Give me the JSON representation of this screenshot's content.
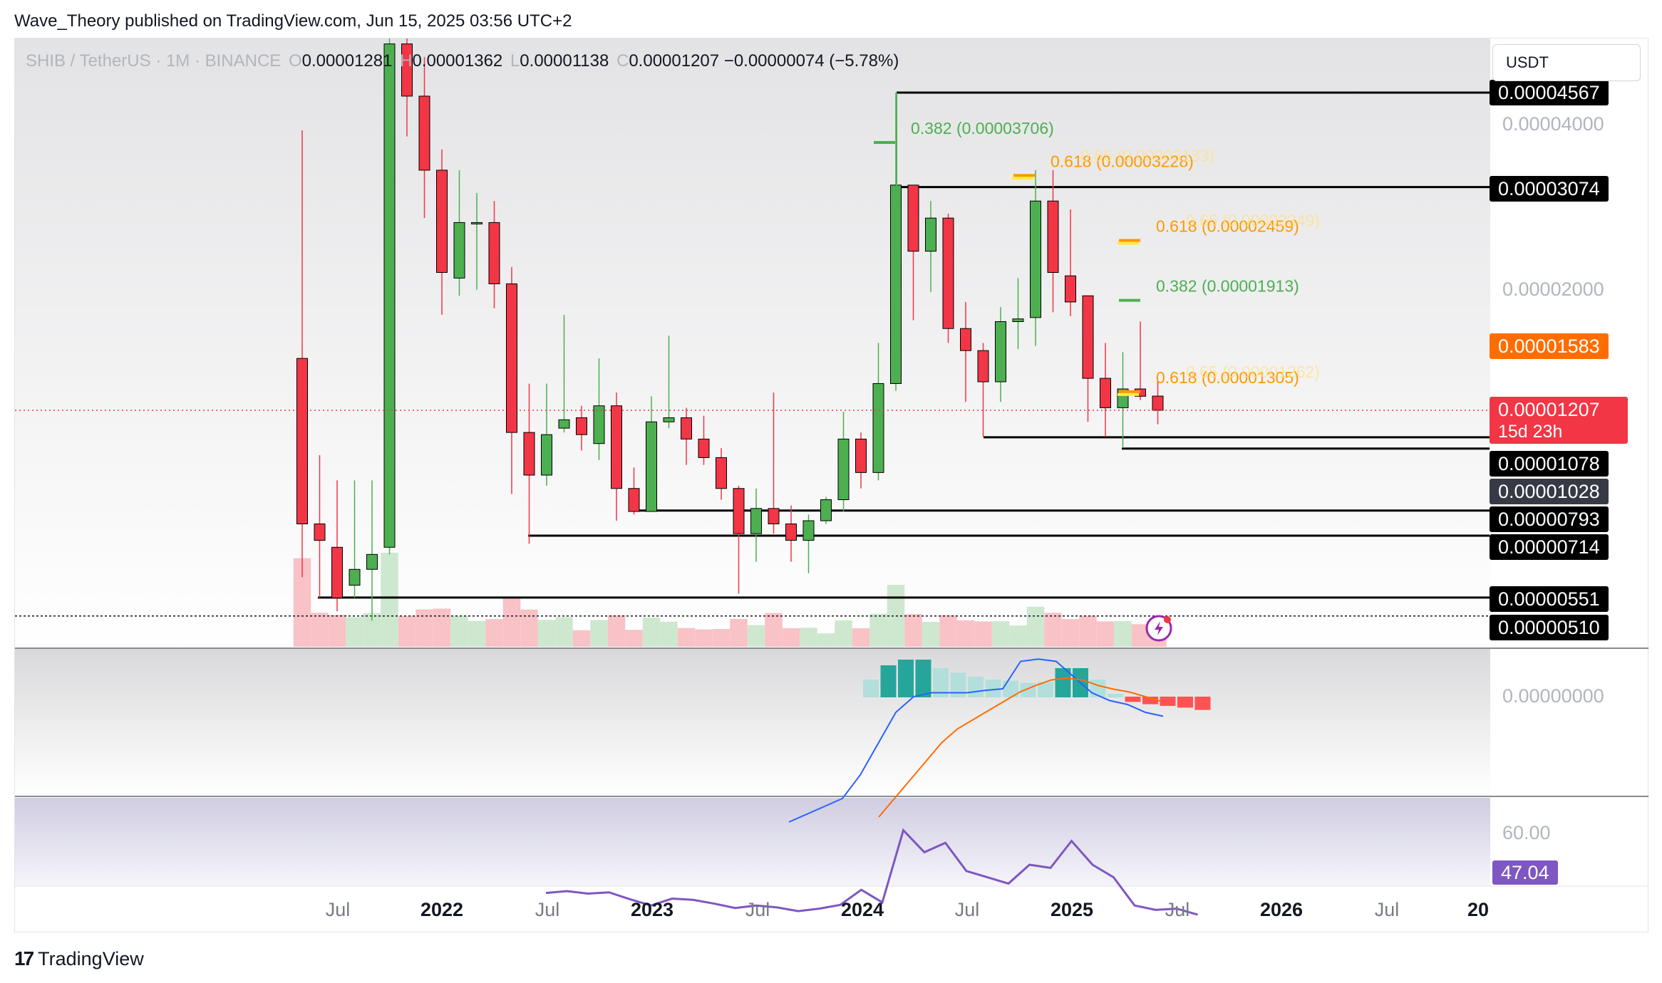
{
  "header": {
    "attribution": "Wave_Theory published on TradingView.com, Jun 15, 2025 03:56 UTC+2"
  },
  "legend": {
    "symbol": "SHIB / TetherUS · 1M · BINANCE",
    "o_label": "O",
    "open": "0.00001281",
    "h_label": "H",
    "high": "0.00001362",
    "l_label": "L",
    "low": "0.00001138",
    "c_label": "C",
    "close": "0.00001207",
    "change": "−0.00000074 (−5.78%)"
  },
  "currency": "USDT",
  "price_tags": {
    "t1": "0.00004567",
    "t2": "0.00003074",
    "t3": "0.00001583",
    "t4_price": "0.00001207",
    "t4_timer": "15d 23h",
    "t5": "0.00001078",
    "t6": "0.00001028",
    "t7": "0.00000793",
    "t8": "0.00000714",
    "t9": "0.00000551",
    "t10": "0.00000510"
  },
  "axis_labels": {
    "a1": "0.00004000",
    "a2": "0.00002000",
    "macd_zero": "0.00000000",
    "rsi_level": "60.00",
    "rsi_value": "47.04"
  },
  "fib_labels": {
    "f1": "0.382 (0.00003706)",
    "f2": "0.618 (0.00003228)",
    "f2_ghost": "0.65 (0.00003133)",
    "f3": "0.618 (0.00002459)",
    "f3_ghost": "0.65 (0.00002349)",
    "f4": "0.382 (0.00001913)",
    "f5": "0.618 (0.00001305)",
    "f5_ghost": "0.65 (0.00001262)"
  },
  "time_axis": [
    {
      "label": "Jul",
      "major": false
    },
    {
      "label": "2022",
      "major": true
    },
    {
      "label": "Jul",
      "major": false
    },
    {
      "label": "2023",
      "major": true
    },
    {
      "label": "Jul",
      "major": false
    },
    {
      "label": "2024",
      "major": true
    },
    {
      "label": "Jul",
      "major": false
    },
    {
      "label": "2025",
      "major": true
    },
    {
      "label": "Jul",
      "major": false
    },
    {
      "label": "2026",
      "major": true
    },
    {
      "label": "Jul",
      "major": false
    },
    {
      "label": "20",
      "major": true
    }
  ],
  "footer": {
    "brand": "TradingView",
    "logo": "17"
  },
  "colors": {
    "up": "#4caf50",
    "down": "#f23645",
    "fib_green": "#4caf50",
    "fib_orange": "#ff9800",
    "macd_line": "#2962ff",
    "signal_line": "#ff6d00",
    "rsi": "#7e57c2",
    "hist_strong_up": "#26a69a",
    "hist_weak_up": "#b2dfdb",
    "hist_down": "#ff5252"
  },
  "chart_data": {
    "type": "candlestick",
    "title": "SHIB / TetherUS · 1M · BINANCE",
    "interval": "1M",
    "scale": "log",
    "note_values": "approximate monthly OHLC estimated from the chart",
    "candles": [
      {
        "t": "2021-05",
        "o": 1.5e-05,
        "h": 3.9e-05,
        "l": 6e-06,
        "c": 7.5e-06
      },
      {
        "t": "2021-06",
        "o": 7.5e-06,
        "h": 1e-05,
        "l": 5.5e-06,
        "c": 7e-06
      },
      {
        "t": "2021-07",
        "o": 6.8e-06,
        "h": 9e-06,
        "l": 5.2e-06,
        "c": 5.5e-06
      },
      {
        "t": "2021-08",
        "o": 5.8e-06,
        "h": 9e-06,
        "l": 5.5e-06,
        "c": 6.2e-06
      },
      {
        "t": "2021-09",
        "o": 6.2e-06,
        "h": 9e-06,
        "l": 5e-06,
        "c": 6.6e-06
      },
      {
        "t": "2021-10",
        "o": 6.8e-06,
        "h": 8.8e-05,
        "l": 6.6e-06,
        "c": 5.6e-05
      },
      {
        "t": "2021-11",
        "o": 5.6e-05,
        "h": 6.4e-05,
        "l": 3.8e-05,
        "c": 4.5e-05
      },
      {
        "t": "2021-12",
        "o": 4.5e-05,
        "h": 5.3e-05,
        "l": 2.7e-05,
        "c": 3.3e-05
      },
      {
        "t": "2022-01",
        "o": 3.3e-05,
        "h": 3.6e-05,
        "l": 1.8e-05,
        "c": 2.15e-05
      },
      {
        "t": "2022-02",
        "o": 2.1e-05,
        "h": 3.3e-05,
        "l": 1.95e-05,
        "c": 2.65e-05
      },
      {
        "t": "2022-03",
        "o": 2.65e-05,
        "h": 3e-05,
        "l": 2e-05,
        "c": 2.65e-05
      },
      {
        "t": "2022-04",
        "o": 2.65e-05,
        "h": 2.9e-05,
        "l": 1.85e-05,
        "c": 2.05e-05
      },
      {
        "t": "2022-05",
        "o": 2.05e-05,
        "h": 2.2e-05,
        "l": 8.5e-06,
        "c": 1.1e-05
      },
      {
        "t": "2022-06",
        "o": 1.1e-05,
        "h": 1.35e-05,
        "l": 6.9e-06,
        "c": 9.2e-06
      },
      {
        "t": "2022-07",
        "o": 9.2e-06,
        "h": 1.35e-05,
        "l": 8.8e-06,
        "c": 1.09e-05
      },
      {
        "t": "2022-08",
        "o": 1.12e-05,
        "h": 1.8e-05,
        "l": 1.1e-05,
        "c": 1.16e-05
      },
      {
        "t": "2022-09",
        "o": 1.17e-05,
        "h": 1.23e-05,
        "l": 1.02e-05,
        "c": 1.09e-05
      },
      {
        "t": "2022-10",
        "o": 1.05e-05,
        "h": 1.5e-05,
        "l": 9.8e-06,
        "c": 1.23e-05
      },
      {
        "t": "2022-11",
        "o": 1.23e-05,
        "h": 1.3e-05,
        "l": 7.6e-06,
        "c": 8.7e-06
      },
      {
        "t": "2022-12",
        "o": 8.7e-06,
        "h": 9.5e-06,
        "l": 7.8e-06,
        "c": 7.9e-06
      },
      {
        "t": "2023-01",
        "o": 7.9e-06,
        "h": 1.28e-05,
        "l": 7.9e-06,
        "c": 1.15e-05
      },
      {
        "t": "2023-02",
        "o": 1.15e-05,
        "h": 1.65e-05,
        "l": 1.12e-05,
        "c": 1.17e-05
      },
      {
        "t": "2023-03",
        "o": 1.17e-05,
        "h": 1.22e-05,
        "l": 9.6e-06,
        "c": 1.07e-05
      },
      {
        "t": "2023-04",
        "o": 1.07e-05,
        "h": 1.18e-05,
        "l": 9.6e-06,
        "c": 9.9e-06
      },
      {
        "t": "2023-05",
        "o": 9.9e-06,
        "h": 1.03e-05,
        "l": 8.3e-06,
        "c": 8.7e-06
      },
      {
        "t": "2023-06",
        "o": 8.7e-06,
        "h": 8.8e-06,
        "l": 5.6e-06,
        "c": 7.2e-06
      },
      {
        "t": "2023-07",
        "o": 7.2e-06,
        "h": 8.7e-06,
        "l": 6.4e-06,
        "c": 8e-06
      },
      {
        "t": "2023-08",
        "o": 8e-06,
        "h": 1.3e-05,
        "l": 7.2e-06,
        "c": 7.5e-06
      },
      {
        "t": "2023-09",
        "o": 7.5e-06,
        "h": 8.1e-06,
        "l": 6.4e-06,
        "c": 7e-06
      },
      {
        "t": "2023-10",
        "o": 7e-06,
        "h": 7.8e-06,
        "l": 6.1e-06,
        "c": 7.6e-06
      },
      {
        "t": "2023-11",
        "o": 7.6e-06,
        "h": 8.4e-06,
        "l": 7.5e-06,
        "c": 8.3e-06
      },
      {
        "t": "2023-12",
        "o": 8.3e-06,
        "h": 1.2e-05,
        "l": 7.9e-06,
        "c": 1.07e-05
      },
      {
        "t": "2024-01",
        "o": 1.07e-05,
        "h": 1.1e-05,
        "l": 8.7e-06,
        "c": 9.3e-06
      },
      {
        "t": "2024-02",
        "o": 9.3e-06,
        "h": 1.6e-05,
        "l": 9e-06,
        "c": 1.35e-05
      },
      {
        "t": "2024-03",
        "o": 1.35e-05,
        "h": 4.57e-05,
        "l": 1.31e-05,
        "c": 3.1e-05
      },
      {
        "t": "2024-04",
        "o": 3.1e-05,
        "h": 3.1e-05,
        "l": 1.76e-05,
        "c": 2.35e-05
      },
      {
        "t": "2024-05",
        "o": 2.35e-05,
        "h": 2.9e-05,
        "l": 1.98e-05,
        "c": 2.7e-05
      },
      {
        "t": "2024-06",
        "o": 2.7e-05,
        "h": 2.75e-05,
        "l": 1.6e-05,
        "c": 1.7e-05
      },
      {
        "t": "2024-07",
        "o": 1.7e-05,
        "h": 1.9e-05,
        "l": 1.25e-05,
        "c": 1.55e-05
      },
      {
        "t": "2024-08",
        "o": 1.55e-05,
        "h": 1.6e-05,
        "l": 1.08e-05,
        "c": 1.36e-05
      },
      {
        "t": "2024-09",
        "o": 1.36e-05,
        "h": 1.86e-05,
        "l": 1.25e-05,
        "c": 1.75e-05
      },
      {
        "t": "2024-10",
        "o": 1.75e-05,
        "h": 2.1e-05,
        "l": 1.56e-05,
        "c": 1.77e-05
      },
      {
        "t": "2024-11",
        "o": 1.78e-05,
        "h": 3.3e-05,
        "l": 1.58e-05,
        "c": 2.9e-05
      },
      {
        "t": "2024-12",
        "o": 2.9e-05,
        "h": 3.3e-05,
        "l": 1.82e-05,
        "c": 2.15e-05
      },
      {
        "t": "2025-01",
        "o": 2.12e-05,
        "h": 2.8e-05,
        "l": 1.79e-05,
        "c": 1.9e-05
      },
      {
        "t": "2025-02",
        "o": 1.95e-05,
        "h": 1.95e-05,
        "l": 1.15e-05,
        "c": 1.38e-05
      },
      {
        "t": "2025-03",
        "o": 1.38e-05,
        "h": 1.6e-05,
        "l": 1.08e-05,
        "c": 1.22e-05
      },
      {
        "t": "2025-04",
        "o": 1.22e-05,
        "h": 1.54e-05,
        "l": 1.03e-05,
        "c": 1.32e-05
      },
      {
        "t": "2025-05",
        "o": 1.32e-05,
        "h": 1.75e-05,
        "l": 1.26e-05,
        "c": 1.28e-05
      },
      {
        "t": "2025-06",
        "o": 1.281e-05,
        "h": 1.362e-05,
        "l": 1.138e-05,
        "c": 1.207e-05
      }
    ],
    "horizontal_levels": [
      4.567e-05,
      3.074e-05,
      1.078e-05,
      1.028e-05,
      7.93e-06,
      7.14e-06,
      5.51e-06,
      5.1e-06
    ],
    "fib_levels": [
      {
        "label": "0.382 (0.00003706)",
        "value": 3.706e-05,
        "color": "green"
      },
      {
        "label": "0.618 (0.00003228)",
        "value": 3.228e-05,
        "color": "orange"
      },
      {
        "label": "0.618 (0.00002459)",
        "value": 2.459e-05,
        "color": "orange"
      },
      {
        "label": "0.382 (0.00001913)",
        "value": 1.913e-05,
        "color": "green"
      },
      {
        "label": "0.618 (0.00001305)",
        "value": 1.305e-05,
        "color": "orange"
      }
    ],
    "indicators": {
      "macd": {
        "histogram": [
          0.3,
          0.55,
          0.65,
          0.65,
          0.5,
          0.42,
          0.35,
          0.3,
          0.28,
          0.24,
          0.26,
          0.5,
          0.5,
          0.3,
          0.05,
          -0.08,
          -0.12,
          -0.15,
          -0.18,
          -0.22
        ],
        "macd_line": [
          -1.6,
          -1.5,
          -1.4,
          -1.3,
          -1.0,
          -0.6,
          -0.2,
          0.0,
          0.05,
          0.05,
          0.05,
          0.08,
          0.1,
          0.45,
          0.48,
          0.45,
          0.25,
          0.05,
          -0.05,
          -0.1,
          -0.2,
          -0.25
        ],
        "signal_line": [
          -1.3,
          -1.1,
          -0.9,
          -0.7,
          -0.5,
          -0.35,
          -0.25,
          -0.15,
          -0.05,
          0.05,
          0.12,
          0.18,
          0.2,
          0.18,
          0.12,
          0.08,
          0.05,
          0.0,
          -0.05
        ]
      },
      "rsi": {
        "values": [
          50.5,
          50.8,
          50.4,
          50.6,
          49.5,
          48.5,
          49.6,
          49.4,
          48.8,
          48.1,
          48.5,
          48.2,
          47.6,
          48.0,
          48.6,
          51.0,
          49.0,
          60.5,
          57.0,
          58.5,
          54.0,
          53.0,
          52.0,
          55.0,
          54.5,
          58.8,
          55.0,
          53.0,
          48.5,
          47.8,
          48.0,
          47.04
        ],
        "level": 60.0,
        "last": 47.04
      }
    }
  }
}
